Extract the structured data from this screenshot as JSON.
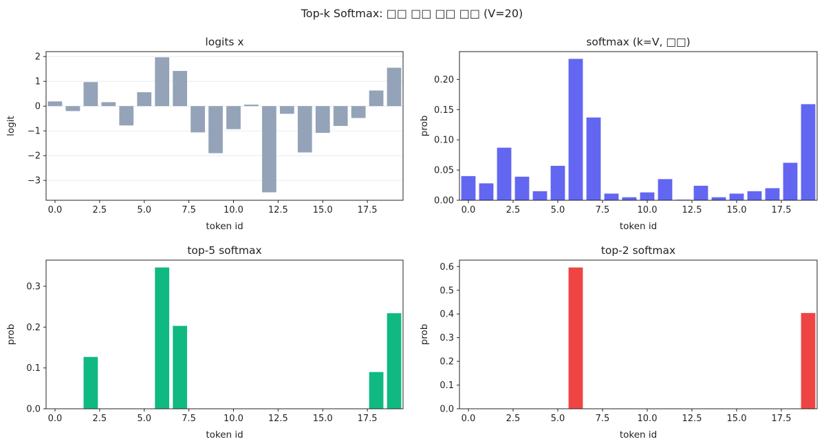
{
  "suptitle": "Top-k Softmax: □□ □□ □□ □□  (V=20)",
  "chart_data": [
    {
      "type": "bar",
      "title": "logits x",
      "xlabel": "token id",
      "ylabel": "logit",
      "color": "#94a3b8",
      "xlim": [
        -0.5,
        19.5
      ],
      "ylim": [
        -3.8,
        2.2
      ],
      "grid": true,
      "xticks": [
        0.0,
        2.5,
        5.0,
        7.5,
        10.0,
        12.5,
        15.0,
        17.5
      ],
      "xtick_labels": [
        "0.0",
        "2.5",
        "5.0",
        "7.5",
        "10.0",
        "12.5",
        "15.0",
        "17.5"
      ],
      "yticks": [
        2,
        1,
        0,
        -1,
        -2,
        -3
      ],
      "ytick_labels": [
        "2",
        "1",
        "0",
        "−1",
        "−2",
        "−3"
      ],
      "x": [
        0,
        1,
        2,
        3,
        4,
        5,
        6,
        7,
        8,
        9,
        10,
        11,
        12,
        13,
        14,
        15,
        16,
        17,
        18,
        19
      ],
      "values": [
        0.19,
        -0.2,
        0.97,
        0.16,
        -0.78,
        0.56,
        1.97,
        1.42,
        -1.06,
        -1.9,
        -0.93,
        0.06,
        -3.48,
        -0.31,
        -1.87,
        -1.08,
        -0.8,
        -0.48,
        0.63,
        1.55
      ]
    },
    {
      "type": "bar",
      "title": "softmax (k=V, □□)",
      "xlabel": "token id",
      "ylabel": "prob",
      "color": "#6366f1",
      "xlim": [
        -0.5,
        19.5
      ],
      "ylim": [
        0,
        0.246
      ],
      "grid": false,
      "xticks": [
        0.0,
        2.5,
        5.0,
        7.5,
        10.0,
        12.5,
        15.0,
        17.5
      ],
      "xtick_labels": [
        "0.0",
        "2.5",
        "5.0",
        "7.5",
        "10.0",
        "12.5",
        "15.0",
        "17.5"
      ],
      "yticks": [
        0.2,
        0.15,
        0.1,
        0.05,
        0.0
      ],
      "ytick_labels": [
        "0.20",
        "0.15",
        "0.10",
        "0.05",
        "0.00"
      ],
      "x": [
        0,
        1,
        2,
        3,
        4,
        5,
        6,
        7,
        8,
        9,
        10,
        11,
        12,
        13,
        14,
        15,
        16,
        17,
        18,
        19
      ],
      "values": [
        0.04,
        0.028,
        0.087,
        0.039,
        0.015,
        0.057,
        0.234,
        0.137,
        0.011,
        0.005,
        0.013,
        0.035,
        0.001,
        0.024,
        0.005,
        0.011,
        0.015,
        0.02,
        0.062,
        0.159
      ]
    },
    {
      "type": "bar",
      "title": "top-5 softmax",
      "xlabel": "token id",
      "ylabel": "prob",
      "color": "#10b981",
      "xlim": [
        -0.5,
        19.5
      ],
      "ylim": [
        0,
        0.364
      ],
      "grid": false,
      "xticks": [
        0.0,
        2.5,
        5.0,
        7.5,
        10.0,
        12.5,
        15.0,
        17.5
      ],
      "xtick_labels": [
        "0.0",
        "2.5",
        "5.0",
        "7.5",
        "10.0",
        "12.5",
        "15.0",
        "17.5"
      ],
      "yticks": [
        0.3,
        0.2,
        0.1,
        0.0
      ],
      "ytick_labels": [
        "0.3",
        "0.2",
        "0.1",
        "0.0"
      ],
      "x": [
        0,
        1,
        2,
        3,
        4,
        5,
        6,
        7,
        8,
        9,
        10,
        11,
        12,
        13,
        14,
        15,
        16,
        17,
        18,
        19
      ],
      "values": [
        0,
        0,
        0.127,
        0,
        0,
        0,
        0.346,
        0.203,
        0,
        0,
        0,
        0,
        0,
        0,
        0,
        0,
        0,
        0,
        0.09,
        0.234
      ]
    },
    {
      "type": "bar",
      "title": "top-2 softmax",
      "xlabel": "token id",
      "ylabel": "prob",
      "color": "#ef4444",
      "xlim": [
        -0.5,
        19.5
      ],
      "ylim": [
        0,
        0.627
      ],
      "grid": false,
      "xticks": [
        0.0,
        2.5,
        5.0,
        7.5,
        10.0,
        12.5,
        15.0,
        17.5
      ],
      "xtick_labels": [
        "0.0",
        "2.5",
        "5.0",
        "7.5",
        "10.0",
        "12.5",
        "15.0",
        "17.5"
      ],
      "yticks": [
        0.6,
        0.5,
        0.4,
        0.3,
        0.2,
        0.1,
        0.0
      ],
      "ytick_labels": [
        "0.6",
        "0.5",
        "0.4",
        "0.3",
        "0.2",
        "0.1",
        "0.0"
      ],
      "x": [
        0,
        1,
        2,
        3,
        4,
        5,
        6,
        7,
        8,
        9,
        10,
        11,
        12,
        13,
        14,
        15,
        16,
        17,
        18,
        19
      ],
      "values": [
        0,
        0,
        0,
        0,
        0,
        0,
        0.596,
        0,
        0,
        0,
        0,
        0,
        0,
        0,
        0,
        0,
        0,
        0,
        0,
        0.404
      ]
    }
  ]
}
